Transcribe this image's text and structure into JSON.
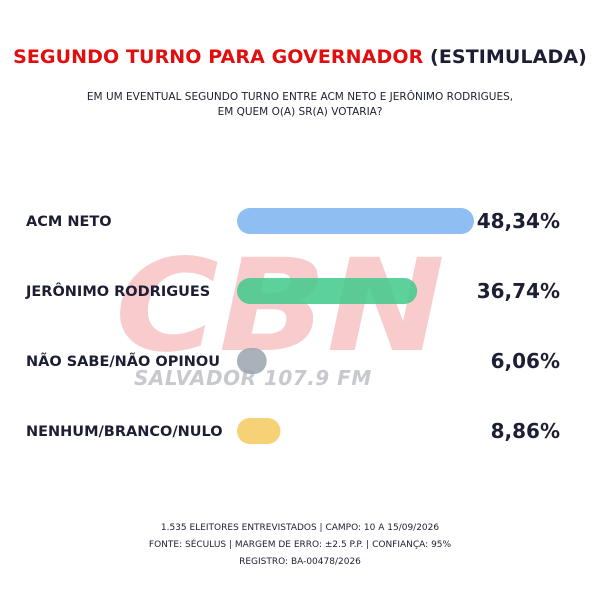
{
  "header": {
    "title_main": "SEGUNDO TURNO PARA GOVERNADOR",
    "title_suffix": "(ESTIMULADA)",
    "subtitle_line1": "EM UM EVENTUAL SEGUNDO TURNO ENTRE ACM NETO E JERÔNIMO RODRIGUES,",
    "subtitle_line2": "EM QUEM O(A) SR(A) VOTARIA?"
  },
  "watermark": {
    "logo_text": "CBN",
    "station_text": "SALVADOR 107.9 FM"
  },
  "chart_data": {
    "type": "bar",
    "orientation": "horizontal",
    "categories": [
      "ACM NETO",
      "JERÔNIMO RODRIGUES",
      "NÃO SABE/NÃO OPINOU",
      "NENHUM/BRANCO/NULO"
    ],
    "values": [
      48.34,
      36.74,
      6.06,
      8.86
    ],
    "value_labels": [
      "48,34%",
      "36,74%",
      "6,06%",
      "8,86%"
    ],
    "colors": [
      "#7bb4f0",
      "#3fc98a",
      "#9aa3ae",
      "#f4c95d"
    ],
    "xlim": [
      0,
      48.34
    ],
    "grid": false,
    "legend": "none"
  },
  "footer": {
    "line1": "1.535 ELEITORES ENTREVISTADOS | CAMPO: 10 A 15/09/2026",
    "line2": "FONTE: SÉCULUS | MARGEM DE ERRO: ±2.5 P.P. | CONFIANÇA: 95%",
    "line3": "REGISTRO: BA-00478/2026"
  },
  "colors": {
    "title_red": "#e00e0e",
    "text_dark": "#1c1f33",
    "watermark_red": "#f4a3a3",
    "watermark_gray": "#c7c9cf"
  }
}
